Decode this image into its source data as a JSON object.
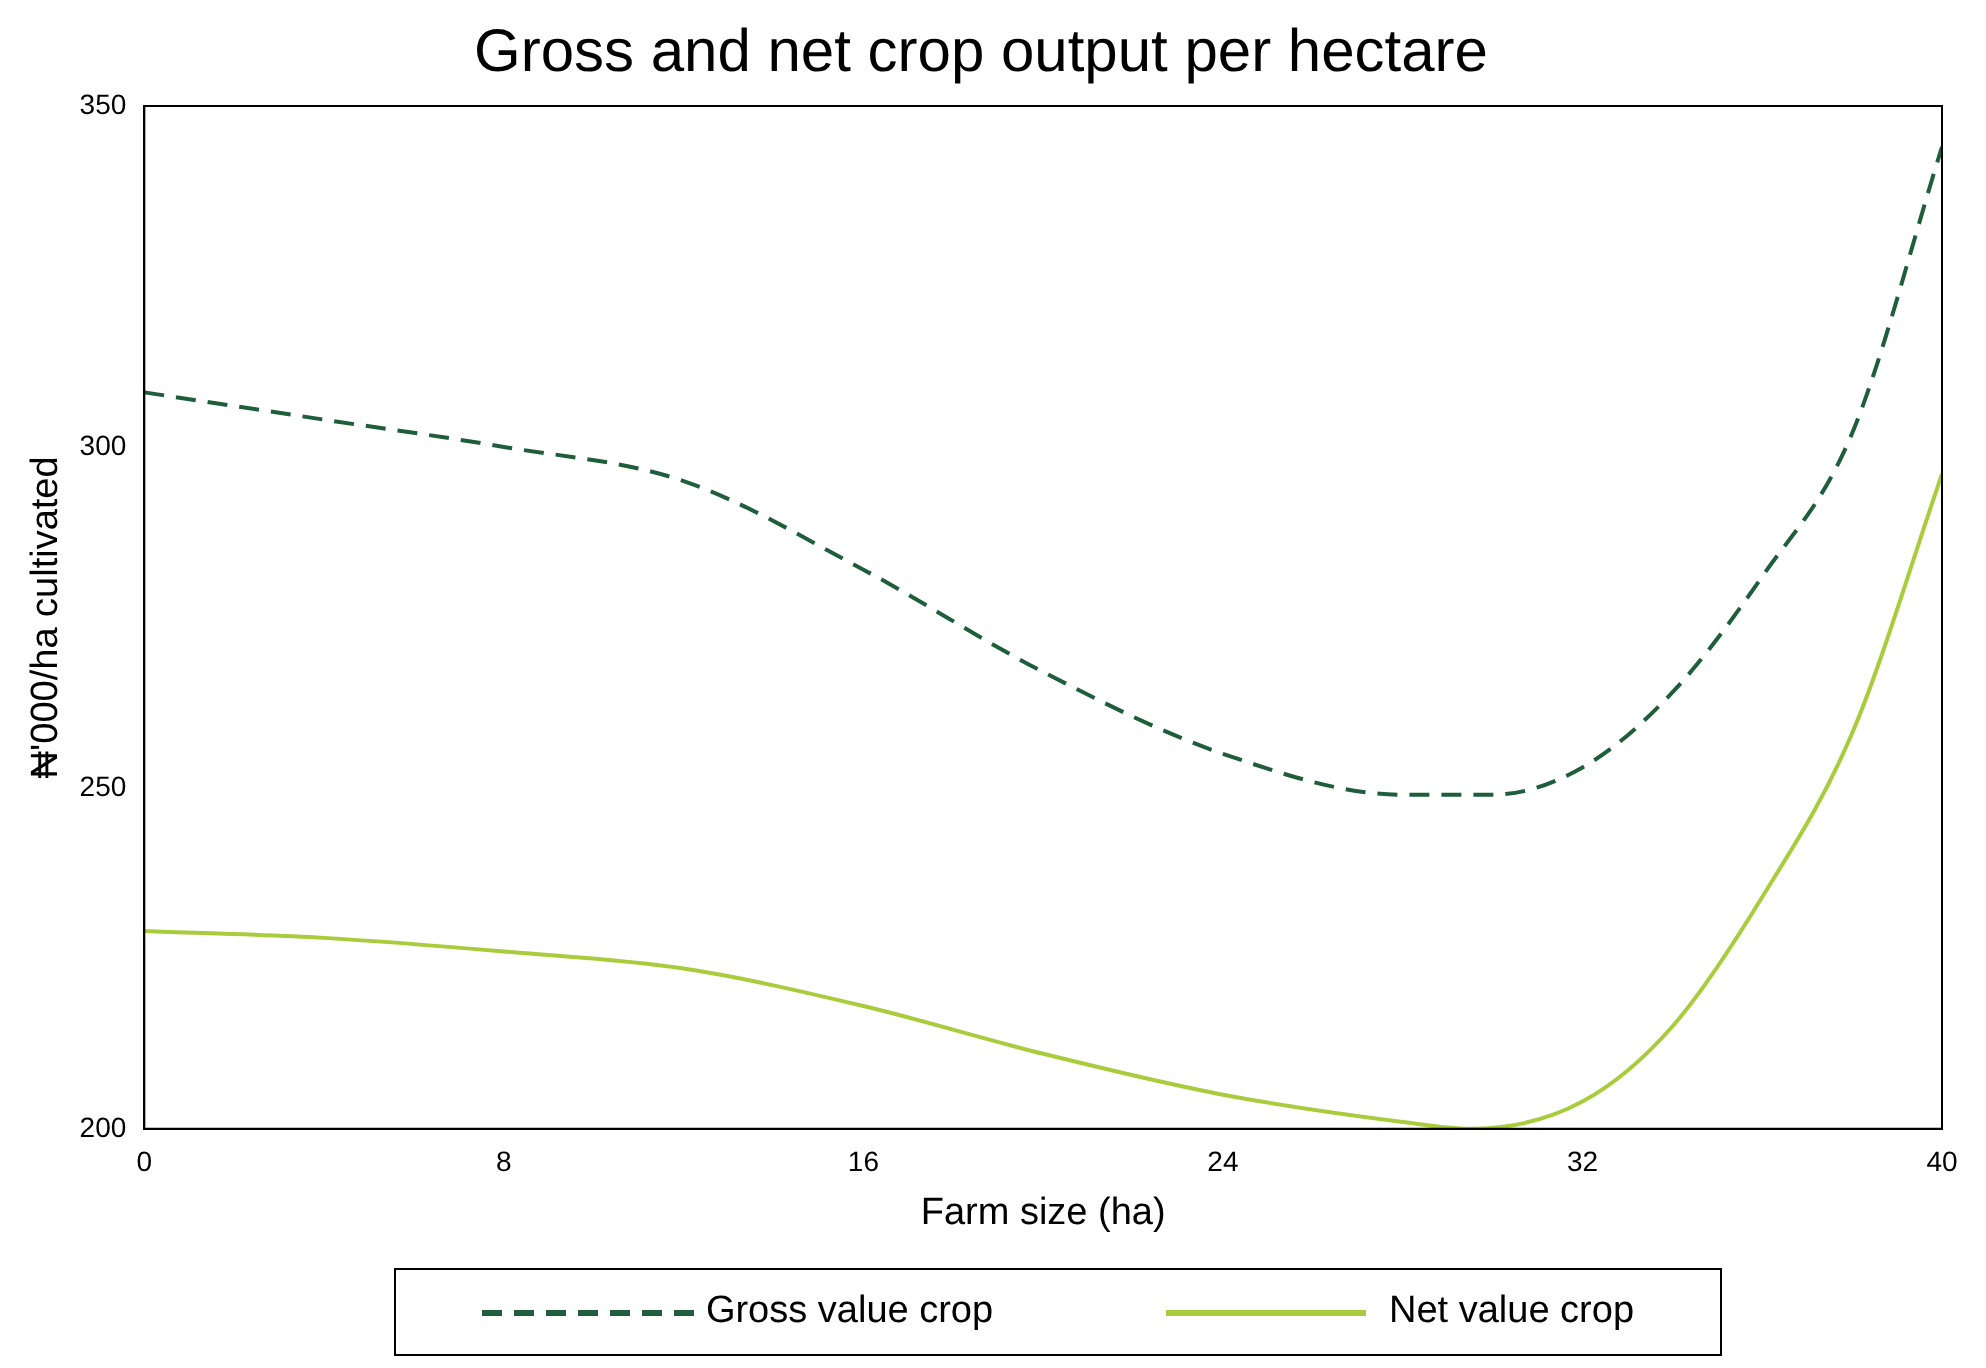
{
  "chart_data": {
    "type": "line",
    "title": "Gross and net crop output per hectare",
    "xlabel": "Farm size (ha)",
    "ylabel": "₦'000/ha cultivated",
    "xlim": [
      0,
      40
    ],
    "xticks": [
      0,
      8,
      16,
      24,
      32,
      40
    ],
    "ylim": [
      200,
      350
    ],
    "yticks": [
      200,
      250,
      300,
      350
    ],
    "grid": false,
    "legend": "bottom",
    "series": [
      {
        "name": "Gross value crop",
        "color": "#1e5e3a",
        "line_style": "dashed",
        "x": [
          0,
          4,
          8,
          12,
          16,
          20,
          24,
          28,
          30,
          32,
          34,
          36,
          38,
          40
        ],
        "values": [
          308,
          304,
          300,
          295,
          282,
          267,
          255,
          249,
          249,
          253,
          264,
          281,
          302,
          344
        ]
      },
      {
        "name": "Net value crop",
        "color": "#a8cc3c",
        "line_style": "solid",
        "x": [
          0,
          4,
          8,
          12,
          16,
          20,
          24,
          28,
          29.5,
          32,
          34,
          36,
          38,
          40
        ],
        "values": [
          229,
          228,
          226,
          223.5,
          218,
          211,
          205,
          201,
          200,
          204,
          215,
          234,
          258,
          296
        ]
      }
    ]
  }
}
